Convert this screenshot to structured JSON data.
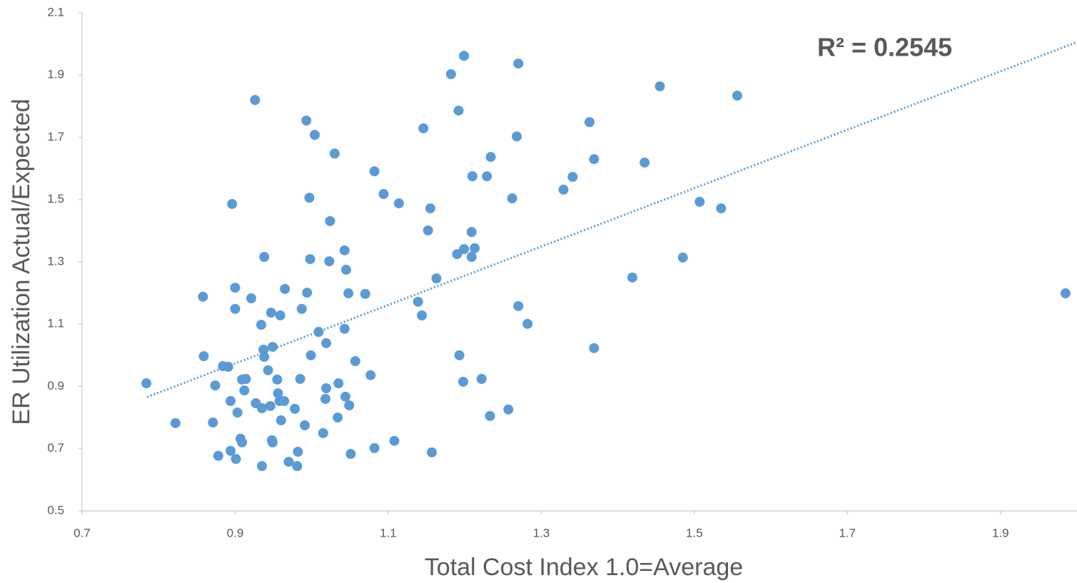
{
  "chart_data": {
    "type": "scatter",
    "xlabel": "Total Cost Index 1.0=Average",
    "ylabel": "ER Utilization Actual/Expected",
    "annotation": "R² = 0.2545",
    "color": "#5b9bd5",
    "xlim": [
      0.7,
      2.0
    ],
    "ylim": [
      0.5,
      2.1
    ],
    "xticks": [
      0.7,
      0.9,
      1.1,
      1.3,
      1.5,
      1.7,
      1.9
    ],
    "yticks": [
      0.5,
      0.7,
      0.9,
      1.1,
      1.3,
      1.5,
      1.7,
      1.9,
      2.1
    ],
    "grid": false,
    "trendline": {
      "x": [
        0.785,
        2.0
      ],
      "y": [
        0.866,
        2.006
      ]
    },
    "x": [
      0.784,
      0.822,
      0.859,
      0.858,
      0.871,
      0.874,
      0.878,
      0.884,
      0.891,
      0.894,
      0.894,
      0.896,
      0.9,
      0.9,
      0.901,
      0.903,
      0.907,
      0.909,
      0.909,
      0.914,
      0.912,
      0.921,
      0.926,
      0.927,
      0.934,
      0.935,
      0.935,
      0.937,
      0.938,
      0.938,
      0.943,
      0.946,
      0.947,
      0.948,
      0.949,
      0.949,
      0.955,
      0.956,
      0.959,
      0.958,
      0.964,
      0.96,
      0.965,
      0.97,
      0.978,
      0.982,
      0.981,
      0.985,
      0.987,
      0.991,
      0.993,
      0.994,
      0.997,
      0.998,
      0.999,
      1.004,
      1.009,
      1.015,
      1.018,
      1.019,
      1.019,
      1.023,
      1.024,
      1.03,
      1.034,
      1.035,
      1.043,
      1.043,
      1.044,
      1.045,
      1.048,
      1.049,
      1.051,
      1.057,
      1.07,
      1.077,
      1.082,
      1.082,
      1.094,
      1.108,
      1.114,
      1.139,
      1.144,
      1.146,
      1.152,
      1.155,
      1.157,
      1.163,
      1.182,
      1.19,
      1.192,
      1.193,
      1.198,
      1.199,
      1.199,
      1.209,
      1.209,
      1.21,
      1.213,
      1.222,
      1.229,
      1.233,
      1.234,
      1.257,
      1.262,
      1.268,
      1.27,
      1.27,
      1.282,
      1.329,
      1.341,
      1.363,
      1.369,
      1.369,
      1.419,
      1.435,
      1.455,
      1.485,
      1.507,
      1.535,
      1.556,
      1.985
    ],
    "values": [
      0.91,
      0.782,
      0.997,
      1.188,
      0.784,
      0.903,
      0.677,
      0.965,
      0.963,
      0.693,
      0.853,
      1.486,
      1.149,
      1.217,
      0.667,
      0.816,
      0.732,
      0.72,
      0.922,
      0.924,
      0.887,
      1.183,
      1.82,
      0.846,
      1.098,
      0.83,
      0.644,
      1.018,
      0.995,
      1.316,
      0.952,
      0.837,
      1.137,
      0.727,
      0.72,
      1.027,
      0.922,
      0.878,
      1.128,
      0.853,
      0.853,
      0.791,
      1.213,
      0.658,
      0.828,
      0.69,
      0.644,
      0.924,
      1.149,
      0.775,
      1.754,
      1.201,
      1.506,
      1.309,
      1.0,
      1.708,
      1.075,
      0.75,
      0.86,
      1.039,
      0.894,
      1.302,
      1.431,
      1.648,
      0.8,
      0.91,
      1.337,
      1.085,
      0.867,
      1.275,
      1.199,
      0.839,
      0.683,
      0.981,
      1.197,
      0.936,
      1.591,
      0.702,
      1.518,
      0.725,
      1.488,
      1.172,
      1.128,
      1.729,
      1.401,
      1.472,
      0.688,
      1.247,
      1.903,
      1.325,
      1.786,
      1.0,
      0.915,
      1.962,
      1.341,
      1.396,
      1.316,
      1.575,
      1.344,
      0.924,
      1.575,
      0.805,
      1.637,
      0.826,
      1.504,
      1.703,
      1.937,
      1.158,
      1.101,
      1.532,
      1.573,
      1.749,
      1.63,
      1.023,
      1.25,
      1.619,
      1.864,
      1.314,
      1.493,
      1.472,
      1.834,
      1.199
    ]
  }
}
